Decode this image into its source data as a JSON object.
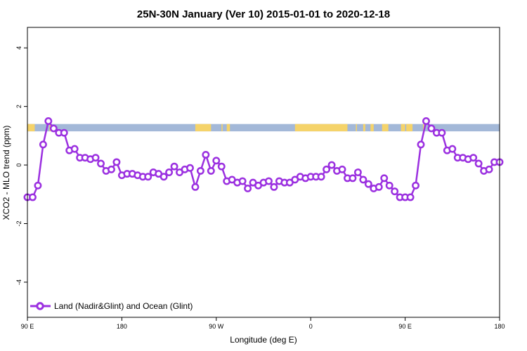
{
  "chart_data": {
    "type": "line",
    "title": "25N-30N January (Ver 10)   2015-01-01 to 2020-12-18",
    "xlabel": "Longitude (deg E)",
    "ylabel": "XCO2 - MLO trend (ppm)",
    "xlim": [
      90,
      540
    ],
    "ylim": [
      -5.2,
      4.7
    ],
    "x_ticks": [
      {
        "value": 90,
        "label": "90 E"
      },
      {
        "value": 180,
        "label": "180"
      },
      {
        "value": 270,
        "label": "90 W"
      },
      {
        "value": 360,
        "label": "0"
      },
      {
        "value": 450,
        "label": "90 E"
      },
      {
        "value": 540,
        "label": "180"
      }
    ],
    "y_ticks": [
      {
        "value": 4,
        "label": "4"
      },
      {
        "value": 2,
        "label": "2"
      },
      {
        "value": 0,
        "label": "0"
      },
      {
        "value": -2,
        "label": "-2"
      },
      {
        "value": -4,
        "label": "-4"
      }
    ],
    "colors": {
      "series": "#9b30e0",
      "land": "#f5d36a",
      "ocean": "#a3b8d8"
    },
    "legend_position": "bottom-left",
    "land_ocean_band": {
      "y_range": [
        1.15,
        1.4
      ],
      "land_segments": [
        [
          90,
          97
        ],
        [
          111,
          113
        ],
        [
          250,
          265
        ],
        [
          275,
          276
        ],
        [
          280,
          283
        ],
        [
          345,
          395
        ],
        [
          403,
          404
        ],
        [
          410,
          412
        ],
        [
          417,
          420
        ],
        [
          428,
          434
        ],
        [
          446,
          450
        ],
        [
          451,
          457
        ],
        [
          467,
          468
        ],
        [
          561,
          563
        ]
      ]
    },
    "series": [
      {
        "name": "Land (Nadir&Glint) and Ocean (Glint)",
        "x": [
          90,
          95,
          100,
          105,
          110,
          115,
          120,
          125,
          130,
          135,
          140,
          145,
          150,
          155,
          160,
          165,
          170,
          175,
          180,
          185,
          190,
          195,
          200,
          205,
          210,
          215,
          220,
          225,
          230,
          235,
          240,
          245,
          250,
          255,
          260,
          265,
          270,
          275,
          280,
          285,
          290,
          295,
          300,
          305,
          310,
          315,
          320,
          325,
          330,
          335,
          340,
          345,
          350,
          355,
          360,
          365,
          370,
          375,
          380,
          385,
          390,
          395,
          400,
          405,
          410,
          415,
          420,
          425,
          430,
          435,
          440,
          445,
          450,
          455,
          460,
          465,
          470,
          475,
          480,
          485,
          490,
          495,
          500,
          505,
          510,
          515,
          520,
          525,
          530,
          535,
          540
        ],
        "values": [
          -1.1,
          -1.1,
          -0.7,
          0.7,
          1.5,
          1.25,
          1.1,
          1.1,
          0.5,
          0.55,
          0.25,
          0.25,
          0.2,
          0.25,
          0.05,
          -0.2,
          -0.15,
          0.1,
          -0.35,
          -0.3,
          -0.3,
          -0.35,
          -0.4,
          -0.4,
          -0.25,
          -0.3,
          -0.4,
          -0.25,
          -0.05,
          -0.25,
          -0.15,
          -0.1,
          -0.75,
          -0.2,
          0.35,
          -0.2,
          0.15,
          -0.05,
          -0.55,
          -0.5,
          -0.6,
          -0.55,
          -0.8,
          -0.6,
          -0.7,
          -0.6,
          -0.55,
          -0.75,
          -0.55,
          -0.6,
          -0.6,
          -0.5,
          -0.4,
          -0.45,
          -0.4,
          -0.4,
          -0.4,
          -0.15,
          0.0,
          -0.2,
          -0.15,
          -0.45,
          -0.45,
          -0.25,
          -0.5,
          -0.65,
          -0.8,
          -0.75,
          -0.45,
          -0.7,
          -0.9,
          -1.1,
          -1.1,
          -1.1,
          -0.7,
          0.7,
          1.5,
          1.25,
          1.1,
          1.1,
          0.5,
          0.55,
          0.25,
          0.25,
          0.2,
          0.25,
          0.05,
          -0.2,
          -0.15,
          0.1,
          0.1
        ]
      }
    ]
  }
}
